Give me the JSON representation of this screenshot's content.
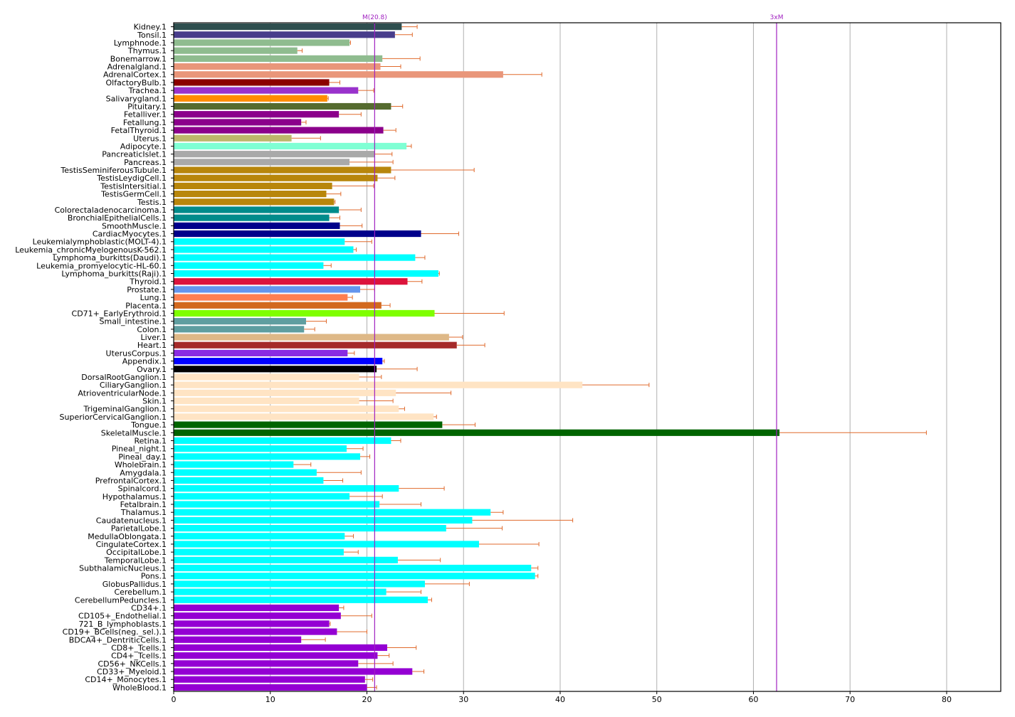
{
  "chart_data": {
    "type": "bar",
    "orientation": "horizontal",
    "xlim": [
      0,
      85.6
    ],
    "xticks": [
      0,
      10,
      20,
      30,
      40,
      50,
      60,
      70,
      80
    ],
    "grid": "vertical",
    "error_color": "#e06a2c",
    "reference_lines": [
      {
        "label": "M(20.8)",
        "value": 20.8,
        "color": "#a020c0"
      },
      {
        "label": "3xM",
        "value": 62.4,
        "color": "#a020c0"
      }
    ],
    "bars": [
      {
        "label": "Kidney.1",
        "value": 23.6,
        "error": 1.6,
        "color": "#2f4f4f"
      },
      {
        "label": "Tonsil.1",
        "value": 22.9,
        "error": 1.8,
        "color": "#483d8b"
      },
      {
        "label": "Lymphnode.1",
        "value": 18.2,
        "error": 0.1,
        "color": "#8fbc8f"
      },
      {
        "label": "Thymus.1",
        "value": 12.8,
        "error": 0.5,
        "color": "#8fbc8f"
      },
      {
        "label": "Bonemarrow.1",
        "value": 21.6,
        "error": 3.9,
        "color": "#8fbc8f"
      },
      {
        "label": "Adrenalgland.1",
        "value": 21.4,
        "error": 2.1,
        "color": "#e9967a"
      },
      {
        "label": "AdrenalCortex.1",
        "value": 34.1,
        "error": 4.0,
        "color": "#e9967a"
      },
      {
        "label": "OlfactoryBulb.1",
        "value": 16.1,
        "error": 1.1,
        "color": "#8b0000"
      },
      {
        "label": "Trachea.1",
        "value": 19.1,
        "error": 1.6,
        "color": "#9932cc"
      },
      {
        "label": "Salivarygland.1",
        "value": 15.9,
        "error": 0.1,
        "color": "#ff8c00"
      },
      {
        "label": "Pituitary.1",
        "value": 22.5,
        "error": 1.2,
        "color": "#556b2f"
      },
      {
        "label": "Fetalliver.1",
        "value": 17.1,
        "error": 2.3,
        "color": "#8b008b"
      },
      {
        "label": "Fetallung.1",
        "value": 13.2,
        "error": 0.5,
        "color": "#8b008b"
      },
      {
        "label": "FetalThyroid.1",
        "value": 21.7,
        "error": 1.3,
        "color": "#8b008b"
      },
      {
        "label": "Uterus.1",
        "value": 12.2,
        "error": 3.0,
        "color": "#bdb76b"
      },
      {
        "label": "Adipocyte.1",
        "value": 24.1,
        "error": 0.5,
        "color": "#7fffd4"
      },
      {
        "label": "PancreaticIslet.1",
        "value": 20.8,
        "error": 1.8,
        "color": "#a9a9a9"
      },
      {
        "label": "Pancreas.1",
        "value": 18.2,
        "error": 4.5,
        "color": "#a9a9a9"
      },
      {
        "label": "TestisSeminiferousTubule.1",
        "value": 22.5,
        "error": 8.6,
        "color": "#b8860b"
      },
      {
        "label": "TestisLeydigCell.1",
        "value": 21.1,
        "error": 1.8,
        "color": "#b8860b"
      },
      {
        "label": "TestisIntersitial.1",
        "value": 16.4,
        "error": 4.3,
        "color": "#b8860b"
      },
      {
        "label": "TestisGermCell.1",
        "value": 15.8,
        "error": 1.5,
        "color": "#b8860b"
      },
      {
        "label": "Testis.1",
        "value": 16.6,
        "error": 0.1,
        "color": "#b8860b"
      },
      {
        "label": "Colorectaladenocarcinoma.1",
        "value": 17.1,
        "error": 2.3,
        "color": "#008b8b"
      },
      {
        "label": "BronchialEpithelialCells.1",
        "value": 16.1,
        "error": 1.1,
        "color": "#008b8b"
      },
      {
        "label": "SmoothMuscle.1",
        "value": 17.2,
        "error": 2.3,
        "color": "#00008b"
      },
      {
        "label": "CardiacMyocytes.1",
        "value": 25.6,
        "error": 3.9,
        "color": "#00008b"
      },
      {
        "label": "Leukemialymphoblastic(MOLT-4).1",
        "value": 17.7,
        "error": 2.8,
        "color": "#00ffff"
      },
      {
        "label": "Leukemia_chronicMyelogenousK-562.1",
        "value": 18.6,
        "error": 0.3,
        "color": "#00ffff"
      },
      {
        "label": "Lymphoma_burkitts(Daudi).1",
        "value": 25.0,
        "error": 1.0,
        "color": "#00ffff"
      },
      {
        "label": "Leukemia_promyelocytic-HL-60.1",
        "value": 15.5,
        "error": 0.8,
        "color": "#00ffff"
      },
      {
        "label": "Lymphoma_burkitts(Raji).1",
        "value": 27.4,
        "error": 0.1,
        "color": "#00ffff"
      },
      {
        "label": "Thyroid.1",
        "value": 24.2,
        "error": 1.5,
        "color": "#dc143c"
      },
      {
        "label": "Prostate.1",
        "value": 19.3,
        "error": 1.5,
        "color": "#6495ed"
      },
      {
        "label": "Lung.1",
        "value": 18.0,
        "error": 0.5,
        "color": "#ff7f50"
      },
      {
        "label": "Placenta.1",
        "value": 21.5,
        "error": 0.9,
        "color": "#d2691e"
      },
      {
        "label": "CD71+_EarlyErythroid.1",
        "value": 27.0,
        "error": 7.2,
        "color": "#7fff00"
      },
      {
        "label": "Small_intestine.1",
        "value": 13.7,
        "error": 2.1,
        "color": "#5f9ea0"
      },
      {
        "label": "Colon.1",
        "value": 13.5,
        "error": 1.1,
        "color": "#5f9ea0"
      },
      {
        "label": "Liver.1",
        "value": 28.5,
        "error": 1.4,
        "color": "#deb887"
      },
      {
        "label": "Heart.1",
        "value": 29.3,
        "error": 2.9,
        "color": "#a52a2a"
      },
      {
        "label": "UterusCorpus.1",
        "value": 18.0,
        "error": 0.7,
        "color": "#8a2be2"
      },
      {
        "label": "Appendix.1",
        "value": 21.6,
        "error": 0.2,
        "color": "#0000ff"
      },
      {
        "label": "Ovary.1",
        "value": 21.0,
        "error": 4.2,
        "color": "#000000"
      },
      {
        "label": "DorsalRootGanglion.1",
        "value": 19.2,
        "error": 2.3,
        "color": "#ffe4c4"
      },
      {
        "label": "CiliaryGanglion.1",
        "value": 42.3,
        "error": 6.9,
        "color": "#ffe4c4"
      },
      {
        "label": "AtrioventricularNode.1",
        "value": 23.0,
        "error": 5.7,
        "color": "#ffe4c4"
      },
      {
        "label": "Skin.1",
        "value": 19.2,
        "error": 3.5,
        "color": "#ffe4c4"
      },
      {
        "label": "TrigeminalGanglion.1",
        "value": 23.3,
        "error": 0.6,
        "color": "#ffe4c4"
      },
      {
        "label": "SuperiorCervicalGanglion.1",
        "value": 26.9,
        "error": 0.3,
        "color": "#ffe4c4"
      },
      {
        "label": "Tongue.1",
        "value": 27.8,
        "error": 3.4,
        "color": "#006400"
      },
      {
        "label": "SkeletalMuscle.1",
        "value": 62.7,
        "error": 15.2,
        "color": "#006400"
      },
      {
        "label": "Retina.1",
        "value": 22.5,
        "error": 1.0,
        "color": "#00ffff"
      },
      {
        "label": "Pineal_night.1",
        "value": 17.9,
        "error": 1.7,
        "color": "#00ffff"
      },
      {
        "label": "Pineal_day.1",
        "value": 19.3,
        "error": 1.0,
        "color": "#00ffff"
      },
      {
        "label": "Wholebrain.1",
        "value": 12.4,
        "error": 1.8,
        "color": "#00ffff"
      },
      {
        "label": "Amygdala.1",
        "value": 14.8,
        "error": 4.6,
        "color": "#00ffff"
      },
      {
        "label": "PrefrontalCortex.1",
        "value": 15.5,
        "error": 2.0,
        "color": "#00ffff"
      },
      {
        "label": "Spinalcord.1",
        "value": 23.3,
        "error": 4.7,
        "color": "#00ffff"
      },
      {
        "label": "Hypothalamus.1",
        "value": 18.2,
        "error": 3.4,
        "color": "#00ffff"
      },
      {
        "label": "Fetalbrain.1",
        "value": 21.3,
        "error": 4.3,
        "color": "#00ffff"
      },
      {
        "label": "Thalamus.1",
        "value": 32.8,
        "error": 1.3,
        "color": "#00ffff"
      },
      {
        "label": "Caudatenucleus.1",
        "value": 30.9,
        "error": 10.4,
        "color": "#00ffff"
      },
      {
        "label": "ParietalLobe.1",
        "value": 28.2,
        "error": 5.8,
        "color": "#00ffff"
      },
      {
        "label": "MedullaOblongata.1",
        "value": 17.7,
        "error": 0.9,
        "color": "#00ffff"
      },
      {
        "label": "CingulateCortex.1",
        "value": 31.6,
        "error": 6.2,
        "color": "#00ffff"
      },
      {
        "label": "OccipitalLobe.1",
        "value": 17.6,
        "error": 1.5,
        "color": "#00ffff"
      },
      {
        "label": "TemporalLobe.1",
        "value": 23.2,
        "error": 4.4,
        "color": "#00ffff"
      },
      {
        "label": "SubthalamicNucleus.1",
        "value": 37.0,
        "error": 0.7,
        "color": "#00ffff"
      },
      {
        "label": "Pons.1",
        "value": 37.4,
        "error": 0.3,
        "color": "#00ffff"
      },
      {
        "label": "GlobusPallidus.1",
        "value": 26.0,
        "error": 4.6,
        "color": "#00ffff"
      },
      {
        "label": "Cerebellum.1",
        "value": 22.0,
        "error": 3.6,
        "color": "#00ffff"
      },
      {
        "label": "CerebellumPeduncles.1",
        "value": 26.3,
        "error": 0.4,
        "color": "#00ffff"
      },
      {
        "label": "CD34+.1",
        "value": 17.1,
        "error": 0.5,
        "color": "#9400d3"
      },
      {
        "label": "CD105+_Endothelial.1",
        "value": 17.3,
        "error": 3.2,
        "color": "#9400d3"
      },
      {
        "label": "721_B_lymphoblasts.1",
        "value": 16.1,
        "error": 0.1,
        "color": "#9400d3"
      },
      {
        "label": "CD19+_BCells(neg._sel.).1",
        "value": 16.9,
        "error": 3.1,
        "color": "#9400d3"
      },
      {
        "label": "BDCA4+_DentriticCells.1",
        "value": 13.2,
        "error": 2.5,
        "color": "#9400d3"
      },
      {
        "label": "CD8+_Tcells.1",
        "value": 22.1,
        "error": 3.0,
        "color": "#9400d3"
      },
      {
        "label": "CD4+_Tcells.1",
        "value": 21.1,
        "error": 1.2,
        "color": "#9400d3"
      },
      {
        "label": "CD56+_NKCells.1",
        "value": 19.1,
        "error": 3.6,
        "color": "#9400d3"
      },
      {
        "label": "CD33+_Myeloid.1",
        "value": 24.7,
        "error": 1.2,
        "color": "#9400d3"
      },
      {
        "label": "CD14+_Monocytes.1",
        "value": 19.8,
        "error": 0.8,
        "color": "#9400d3"
      },
      {
        "label": "WholeBlood.1",
        "value": 20.0,
        "error": 1.0,
        "color": "#9400d3"
      }
    ]
  }
}
